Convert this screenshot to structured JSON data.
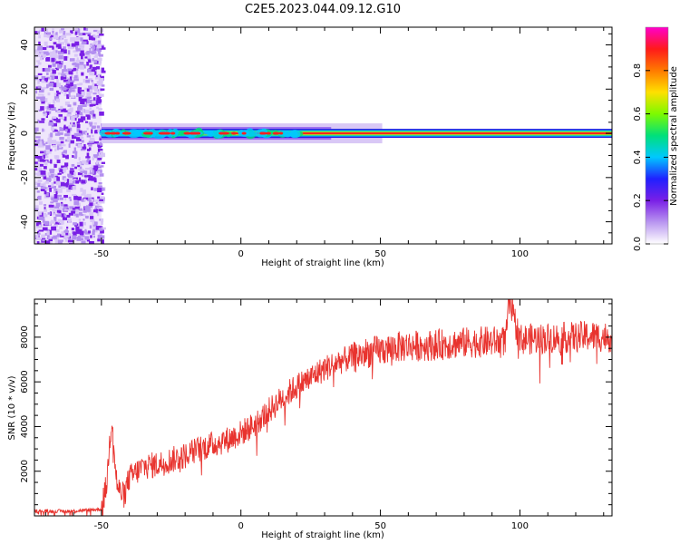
{
  "figure": {
    "title": "C2E5.2023.044.09.12.G10"
  },
  "colors": {
    "signal_line": "#e8332e",
    "spectrum_cmap": [
      "#ffffff",
      "#b996f0",
      "#7a1fe6",
      "#2020ff",
      "#00c8ff",
      "#00e07a",
      "#7dfa00",
      "#ffe000",
      "#ff7a00",
      "#ff1a1a",
      "#ff00cc"
    ]
  },
  "chart_data": [
    {
      "type": "heatmap",
      "name": "spectrogram",
      "xlabel": "Height of straight line (km)",
      "ylabel": "Frequency (Hz)",
      "xlim": [
        -74,
        133
      ],
      "ylim": [
        -50,
        48
      ],
      "xticks": [
        -50,
        0,
        50,
        100
      ],
      "yticks": [
        -40,
        -20,
        0,
        20,
        40
      ],
      "noise_region_x": [
        -74,
        -50
      ],
      "carrier_frequency_hz": 0,
      "carrier_start_x": -50,
      "colorbar": {
        "label": "Normalized spectral amplitude",
        "range": [
          0.0,
          1.0
        ],
        "ticks": [
          0.0,
          0.2,
          0.4,
          0.6,
          0.8
        ]
      }
    },
    {
      "type": "line",
      "name": "snr",
      "xlabel": "Height of straight line (km)",
      "ylabel": "SNR (10 * v/v)",
      "xlim": [
        -74,
        133
      ],
      "ylim": [
        0,
        9700
      ],
      "xticks": [
        -50,
        0,
        50,
        100
      ],
      "yticks": [
        2000,
        4000,
        6000,
        8000
      ],
      "series": [
        {
          "x": [
            -74,
            -60,
            -50,
            -48,
            -47,
            -46,
            -45,
            -44,
            -42,
            -40,
            -35,
            -30,
            -25,
            -20,
            -15,
            -10,
            -5,
            0,
            5,
            10,
            15,
            20,
            25,
            30,
            35,
            40,
            45,
            50,
            55,
            60,
            70,
            80,
            90,
            95,
            96,
            100,
            110,
            120,
            125,
            133
          ],
          "y": [
            200,
            220,
            300,
            1500,
            3500,
            4400,
            2000,
            1200,
            900,
            1700,
            2200,
            2300,
            2500,
            2700,
            3000,
            3200,
            3400,
            3700,
            4100,
            4700,
            5300,
            5800,
            6200,
            6600,
            6900,
            7100,
            7300,
            7400,
            7550,
            7600,
            7650,
            7750,
            7800,
            7850,
            9600,
            7900,
            7950,
            8000,
            8050,
            8000
          ]
        }
      ]
    }
  ]
}
